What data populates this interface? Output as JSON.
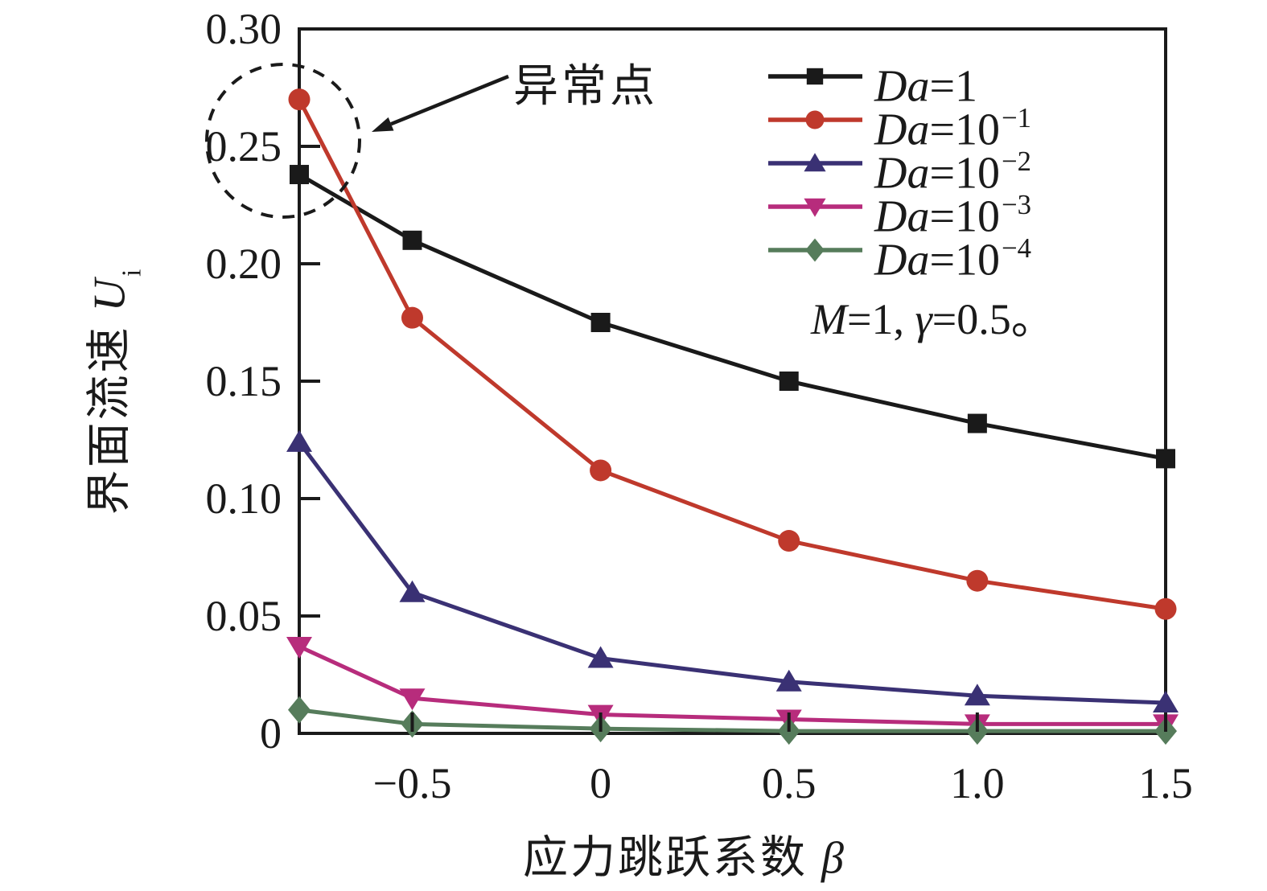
{
  "figure": {
    "background": "#ffffff",
    "ylabel": {
      "cn": "界面流速 ",
      "var": "U",
      "sub": "i"
    },
    "xlabel": {
      "cn": "应力跳跃系数 ",
      "var": "β"
    },
    "annotation": {
      "text": "异常点"
    },
    "condition": {
      "m": "M",
      "eq1": "=1, ",
      "g": "γ",
      "eq2": "=0.5。"
    }
  },
  "chart_data": {
    "type": "line",
    "title": "",
    "xlabel": "应力跳跃系数 β",
    "ylabel": "界面流速 Ui",
    "xlim": [
      -0.8,
      1.5
    ],
    "ylim": [
      0,
      0.3
    ],
    "grid": false,
    "legend_position": "upper-right-inside",
    "x": [
      -0.8,
      -0.5,
      0,
      0.5,
      1.0,
      1.5
    ],
    "x_ticks": [
      {
        "v": -0.5,
        "label": "−0.5"
      },
      {
        "v": 0,
        "label": "0"
      },
      {
        "v": 0.5,
        "label": "0.5"
      },
      {
        "v": 1.0,
        "label": "1.0"
      },
      {
        "v": 1.5,
        "label": "1.5"
      }
    ],
    "y_ticks": [
      {
        "v": 0,
        "label": "0"
      },
      {
        "v": 0.05,
        "label": "0.05"
      },
      {
        "v": 0.1,
        "label": "0.10"
      },
      {
        "v": 0.15,
        "label": "0.15"
      },
      {
        "v": 0.2,
        "label": "0.20"
      },
      {
        "v": 0.25,
        "label": "0.25"
      },
      {
        "v": 0.3,
        "label": "0.30"
      }
    ],
    "series": [
      {
        "name": "Da=1",
        "legend": {
          "var": "Da",
          "eq": "=1",
          "sup": ""
        },
        "color": "#1a1a1a",
        "marker": "square",
        "values": [
          0.238,
          0.21,
          0.175,
          0.15,
          0.132,
          0.117
        ]
      },
      {
        "name": "Da=10^-1",
        "legend": {
          "var": "Da",
          "eq": "=10",
          "sup": "−1"
        },
        "color": "#bf392c",
        "marker": "circle",
        "values": [
          0.27,
          0.177,
          0.112,
          0.082,
          0.065,
          0.053
        ]
      },
      {
        "name": "Da=10^-2",
        "legend": {
          "var": "Da",
          "eq": "=10",
          "sup": "−2"
        },
        "color": "#3a3174",
        "marker": "triangle-up",
        "values": [
          0.124,
          0.06,
          0.032,
          0.022,
          0.016,
          0.013
        ]
      },
      {
        "name": "Da=10^-3",
        "legend": {
          "var": "Da",
          "eq": "=10",
          "sup": "−3"
        },
        "color": "#b72c7c",
        "marker": "triangle-down",
        "values": [
          0.037,
          0.015,
          0.008,
          0.006,
          0.004,
          0.004
        ]
      },
      {
        "name": "Da=10^-4",
        "legend": {
          "var": "Da",
          "eq": "=10",
          "sup": "−4"
        },
        "color": "#567c5b",
        "marker": "diamond",
        "values": [
          0.01,
          0.004,
          0.002,
          0.001,
          0.001,
          0.001
        ]
      }
    ],
    "annotation": {
      "text": "异常点"
    }
  }
}
